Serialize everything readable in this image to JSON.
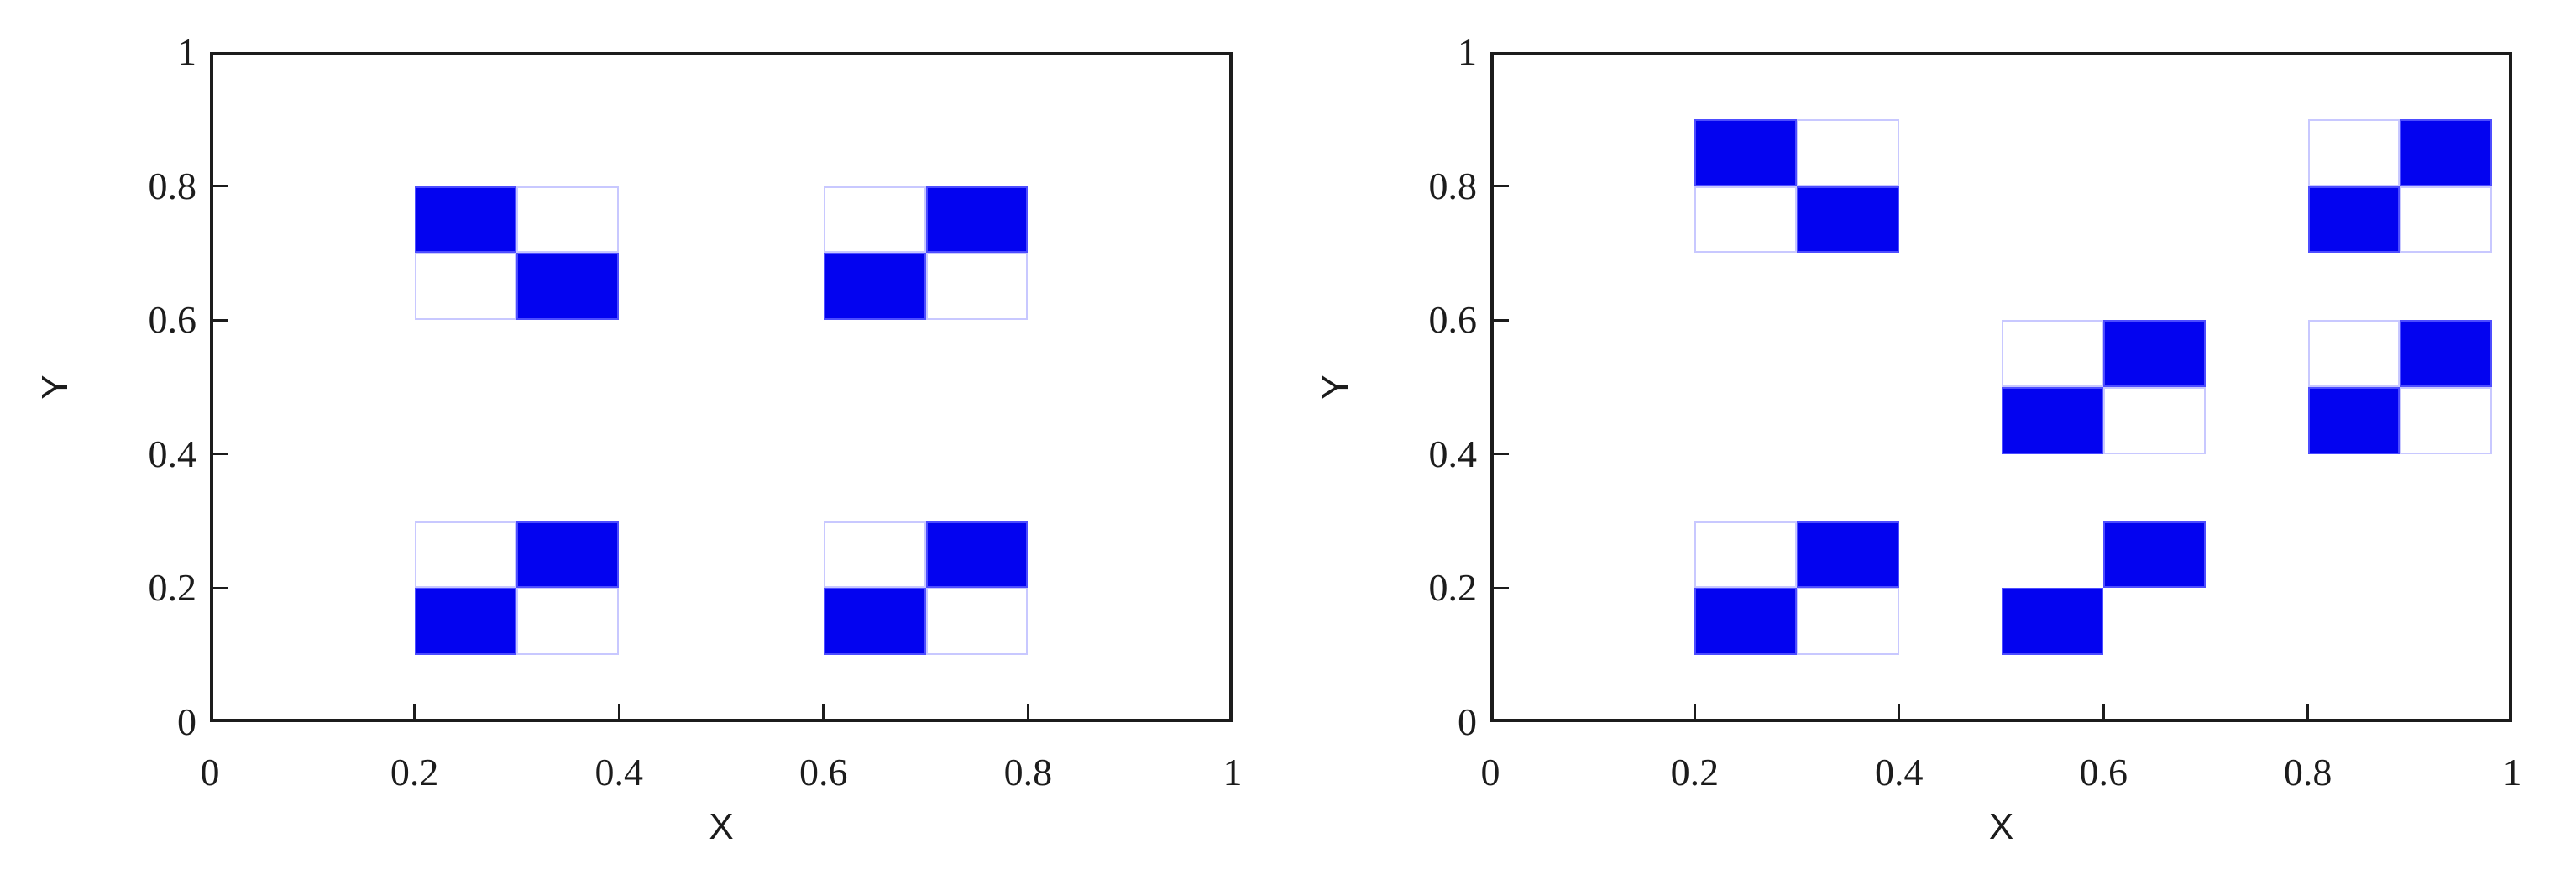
{
  "figure": {
    "background": "#ffffff",
    "panels_count": 2
  },
  "colors": {
    "blue_fill": "#0303f0",
    "blue_cell_edge": "#4d4dff",
    "white_cell_outline": "#c8c8ff",
    "frame": "#1c1c1c",
    "text": "#1c1c1c",
    "background": "#ffffff"
  },
  "chart_data": [
    {
      "type": "heatmap",
      "panel": "left",
      "title": "",
      "xlabel": "X",
      "ylabel": "Y",
      "xlim": [
        0,
        1
      ],
      "ylim": [
        0,
        1
      ],
      "xticks": [
        0,
        0.2,
        0.4,
        0.6,
        0.8,
        1
      ],
      "yticks": [
        0,
        0.2,
        0.4,
        0.6,
        0.8,
        1
      ],
      "xtick_labels": [
        "0",
        "0.2",
        "0.4",
        "0.6",
        "0.8",
        "1"
      ],
      "ytick_labels": [
        "0",
        "0.2",
        "0.4",
        "0.6",
        "0.8",
        "1"
      ],
      "grid": false,
      "legend": false,
      "blocks": [
        {
          "x_edges": [
            0.2,
            0.3,
            0.4
          ],
          "y_edges": [
            0.6,
            0.7,
            0.8
          ],
          "pattern_rows_top_to_bottom": [
            [
              "blue",
              "white"
            ],
            [
              "white",
              "blue"
            ]
          ]
        },
        {
          "x_edges": [
            0.6,
            0.7,
            0.8
          ],
          "y_edges": [
            0.6,
            0.7,
            0.8
          ],
          "pattern_rows_top_to_bottom": [
            [
              "white",
              "blue"
            ],
            [
              "blue",
              "white"
            ]
          ]
        },
        {
          "x_edges": [
            0.2,
            0.3,
            0.4
          ],
          "y_edges": [
            0.1,
            0.2,
            0.3
          ],
          "pattern_rows_top_to_bottom": [
            [
              "white",
              "blue"
            ],
            [
              "blue",
              "white"
            ]
          ]
        },
        {
          "x_edges": [
            0.6,
            0.7,
            0.8
          ],
          "y_edges": [
            0.1,
            0.2,
            0.3
          ],
          "pattern_rows_top_to_bottom": [
            [
              "white",
              "blue"
            ],
            [
              "blue",
              "white"
            ]
          ]
        }
      ]
    },
    {
      "type": "heatmap",
      "panel": "right",
      "title": "",
      "xlabel": "X",
      "ylabel": "Y",
      "xlim": [
        0,
        1
      ],
      "ylim": [
        0,
        1
      ],
      "xticks": [
        0,
        0.2,
        0.4,
        0.6,
        0.8,
        1
      ],
      "yticks": [
        0,
        0.2,
        0.4,
        0.6,
        0.8,
        1
      ],
      "xtick_labels": [
        "0",
        "0.2",
        "0.4",
        "0.6",
        "0.8",
        "1"
      ],
      "ytick_labels": [
        "0",
        "0.2",
        "0.4",
        "0.6",
        "0.8",
        "1"
      ],
      "grid": false,
      "legend": false,
      "blocks": [
        {
          "x_edges": [
            0.2,
            0.3,
            0.4
          ],
          "y_edges": [
            0.7,
            0.8,
            0.9
          ],
          "pattern_rows_top_to_bottom": [
            [
              "blue",
              "white"
            ],
            [
              "white",
              "blue"
            ]
          ]
        },
        {
          "x_edges": [
            0.8,
            0.89,
            0.98
          ],
          "y_edges": [
            0.7,
            0.8,
            0.9
          ],
          "pattern_rows_top_to_bottom": [
            [
              "white",
              "blue"
            ],
            [
              "blue",
              "white"
            ]
          ]
        },
        {
          "x_edges": [
            0.5,
            0.6,
            0.7
          ],
          "y_edges": [
            0.4,
            0.5,
            0.6
          ],
          "pattern_rows_top_to_bottom": [
            [
              "white",
              "blue"
            ],
            [
              "blue",
              "white"
            ]
          ]
        },
        {
          "x_edges": [
            0.8,
            0.89,
            0.98
          ],
          "y_edges": [
            0.4,
            0.5,
            0.6
          ],
          "pattern_rows_top_to_bottom": [
            [
              "white",
              "blue"
            ],
            [
              "blue",
              "white"
            ]
          ]
        },
        {
          "x_edges": [
            0.2,
            0.3,
            0.4
          ],
          "y_edges": [
            0.1,
            0.2,
            0.3
          ],
          "pattern_rows_top_to_bottom": [
            [
              "white",
              "blue"
            ],
            [
              "blue",
              "white"
            ]
          ]
        },
        {
          "x_edges": [
            0.5,
            0.6,
            0.7
          ],
          "y_edges": [
            0.1,
            0.2,
            0.3
          ],
          "pattern_rows_top_to_bottom": [
            [
              null,
              "blue"
            ],
            [
              "blue",
              null
            ]
          ]
        }
      ]
    }
  ]
}
